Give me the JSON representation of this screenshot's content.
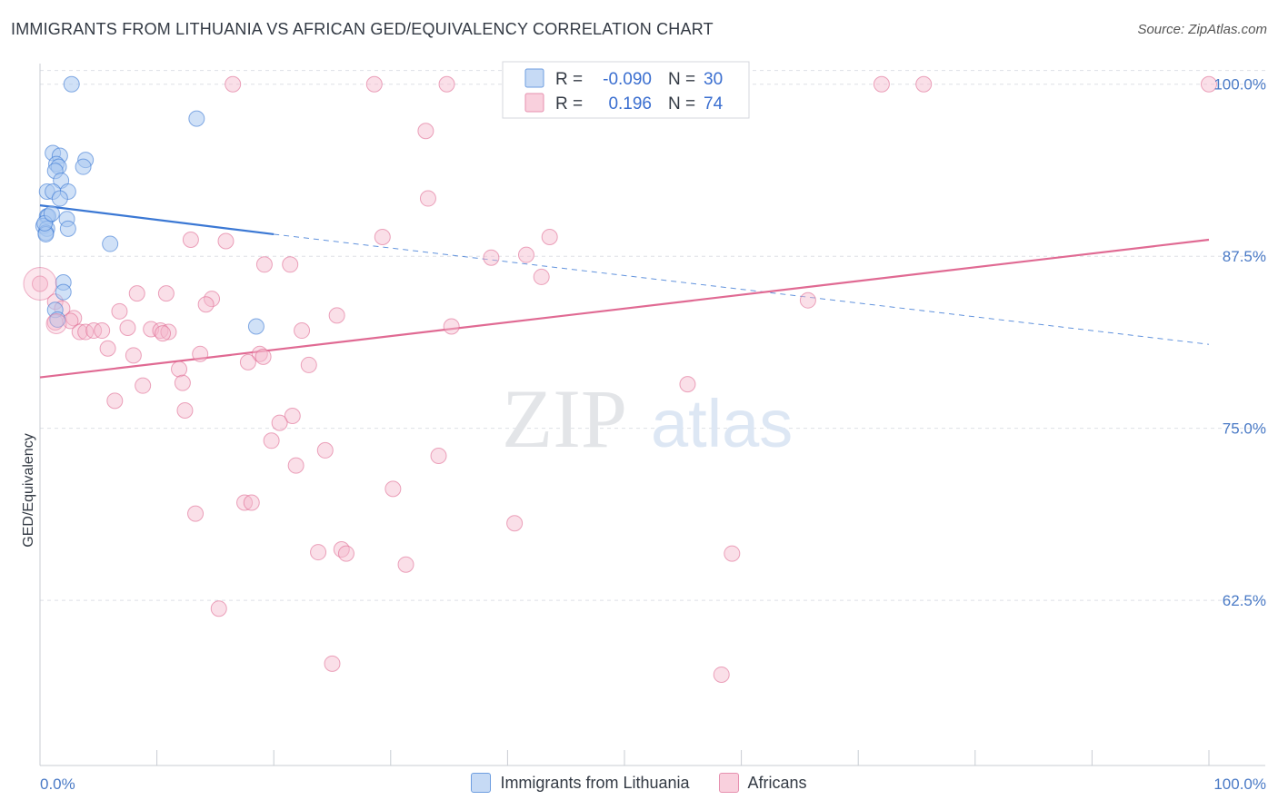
{
  "title": "IMMIGRANTS FROM LITHUANIA VS AFRICAN GED/EQUIVALENCY CORRELATION CHART",
  "source": "Source: ZipAtlas.com",
  "watermark": {
    "zip": "ZIP",
    "atlas": "atlas"
  },
  "colors": {
    "blue": "#3b78d4",
    "blue_fill": "#aac8f0",
    "pink": "#e06a93",
    "pink_fill": "#f5b8cc",
    "grid": "#dde0e6",
    "tick_text": "#4a7ac6"
  },
  "chart_data": {
    "type": "scatter",
    "title": "IMMIGRANTS FROM LITHUANIA VS AFRICAN GED/EQUIVALENCY CORRELATION CHART",
    "xlabel": "",
    "ylabel": "GED/Equivalency",
    "xlim": [
      0,
      100
    ],
    "ylim": [
      50.5,
      101.5
    ],
    "x_ticks": [
      "0.0%",
      "100.0%"
    ],
    "y_ticks": [
      {
        "value": 100,
        "label": "100.0%"
      },
      {
        "value": 87.5,
        "label": "87.5%"
      },
      {
        "value": 75,
        "label": "75.0%"
      },
      {
        "value": 62.5,
        "label": "62.5%"
      }
    ],
    "grid": true,
    "legend_position": "top-center",
    "series": [
      {
        "name": "Immigrants from Lithuania",
        "R": "-0.090",
        "N": "30",
        "color": "#3b78d4",
        "trend": {
          "x0": 0,
          "y0": 91.2,
          "x1": 20,
          "y1": 89.1,
          "dash_to_x": 100,
          "dash_to_y": 81.1
        },
        "points": [
          [
            2.7,
            100.0
          ],
          [
            13.4,
            97.5
          ],
          [
            1.1,
            95.0
          ],
          [
            1.7,
            94.8
          ],
          [
            3.9,
            94.5
          ],
          [
            1.4,
            94.2
          ],
          [
            1.6,
            94.0
          ],
          [
            3.7,
            94.0
          ],
          [
            1.3,
            93.7
          ],
          [
            1.8,
            93.0
          ],
          [
            0.6,
            92.2
          ],
          [
            1.1,
            92.2
          ],
          [
            2.4,
            92.2
          ],
          [
            1.7,
            91.7
          ],
          [
            0.6,
            90.4
          ],
          [
            0.7,
            90.4
          ],
          [
            2.3,
            90.2
          ],
          [
            0.3,
            89.7
          ],
          [
            0.6,
            89.5
          ],
          [
            2.4,
            89.5
          ],
          [
            0.5,
            89.2
          ],
          [
            0.5,
            89.1
          ],
          [
            6.0,
            88.4
          ],
          [
            2.0,
            85.6
          ],
          [
            2.0,
            84.9
          ],
          [
            1.3,
            83.6
          ],
          [
            1.5,
            82.9
          ],
          [
            18.5,
            82.4
          ],
          [
            0.4,
            89.9
          ],
          [
            1.0,
            90.6
          ]
        ]
      },
      {
        "name": "Africans",
        "R": "0.196",
        "N": "74",
        "color": "#e06a93",
        "trend": {
          "x0": 0,
          "y0": 78.7,
          "x1": 100,
          "y1": 88.7
        },
        "points": [
          [
            16.5,
            100.0
          ],
          [
            28.6,
            100.0
          ],
          [
            34.8,
            100.0
          ],
          [
            52.4,
            100.0
          ],
          [
            72.0,
            100.0
          ],
          [
            75.6,
            100.0
          ],
          [
            100.0,
            100.0
          ],
          [
            33.0,
            96.6
          ],
          [
            33.2,
            91.7
          ],
          [
            12.9,
            88.7
          ],
          [
            15.9,
            88.6
          ],
          [
            29.3,
            88.9
          ],
          [
            43.6,
            88.9
          ],
          [
            41.6,
            87.6
          ],
          [
            38.6,
            87.4
          ],
          [
            19.2,
            86.9
          ],
          [
            21.4,
            86.9
          ],
          [
            42.9,
            86.0
          ],
          [
            0.0,
            85.5
          ],
          [
            8.3,
            84.8
          ],
          [
            10.8,
            84.8
          ],
          [
            14.7,
            84.4
          ],
          [
            14.2,
            84.0
          ],
          [
            65.7,
            84.3
          ],
          [
            1.3,
            84.2
          ],
          [
            1.9,
            83.7
          ],
          [
            6.8,
            83.5
          ],
          [
            25.4,
            83.2
          ],
          [
            2.9,
            83.0
          ],
          [
            1.3,
            82.7
          ],
          [
            2.6,
            82.8
          ],
          [
            7.5,
            82.3
          ],
          [
            9.5,
            82.2
          ],
          [
            10.3,
            82.1
          ],
          [
            11.0,
            82.0
          ],
          [
            22.4,
            82.1
          ],
          [
            35.2,
            82.4
          ],
          [
            3.4,
            82.0
          ],
          [
            3.9,
            82.0
          ],
          [
            4.6,
            82.1
          ],
          [
            5.3,
            82.1
          ],
          [
            10.5,
            81.9
          ],
          [
            5.8,
            80.8
          ],
          [
            13.7,
            80.4
          ],
          [
            8.0,
            80.3
          ],
          [
            18.8,
            80.4
          ],
          [
            19.1,
            80.2
          ],
          [
            17.8,
            79.8
          ],
          [
            23.0,
            79.6
          ],
          [
            11.9,
            79.3
          ],
          [
            12.2,
            78.3
          ],
          [
            8.8,
            78.1
          ],
          [
            55.4,
            78.2
          ],
          [
            6.4,
            77.0
          ],
          [
            12.4,
            76.3
          ],
          [
            21.6,
            75.9
          ],
          [
            20.5,
            75.4
          ],
          [
            19.8,
            74.1
          ],
          [
            24.4,
            73.4
          ],
          [
            34.1,
            73.0
          ],
          [
            21.9,
            72.3
          ],
          [
            30.2,
            70.6
          ],
          [
            17.5,
            69.6
          ],
          [
            18.1,
            69.6
          ],
          [
            13.3,
            68.8
          ],
          [
            40.6,
            68.1
          ],
          [
            23.8,
            66.0
          ],
          [
            25.8,
            66.2
          ],
          [
            26.2,
            65.9
          ],
          [
            59.2,
            65.9
          ],
          [
            31.3,
            65.1
          ],
          [
            15.3,
            61.9
          ],
          [
            25.0,
            57.9
          ],
          [
            58.3,
            57.1
          ]
        ]
      }
    ]
  }
}
